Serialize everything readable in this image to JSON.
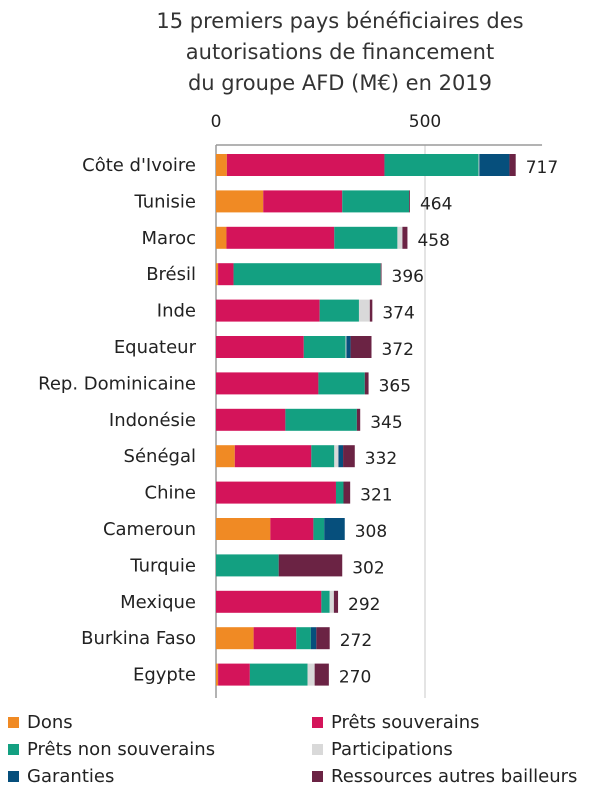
{
  "chart_data": {
    "type": "bar",
    "orientation": "horizontal",
    "stacked": true,
    "title_lines": [
      "15 premiers pays bénéficiaires des",
      "autorisations de financement",
      "du groupe AFD (M€) en 2019"
    ],
    "xlim": [
      0,
      780
    ],
    "x_ticks": [
      0,
      500
    ],
    "x_tick_labels": [
      "0",
      "500"
    ],
    "x_axis_position": "top",
    "grid": "vertical gridlines at ticks",
    "legend_position": "bottom",
    "categories": [
      "Côte d'Ivoire",
      "Tunisie",
      "Maroc",
      "Brésil",
      "Inde",
      "Equateur",
      "Rep. Dominicaine",
      "Indonésie",
      "Sénégal",
      "Chine",
      "Cameroun",
      "Turquie",
      "Mexique",
      "Burkina Faso",
      "Egypte"
    ],
    "totals": [
      717,
      464,
      458,
      396,
      374,
      372,
      365,
      345,
      332,
      321,
      308,
      302,
      292,
      272,
      270
    ],
    "series": [
      {
        "name": "Dons",
        "color": "#f08a24",
        "values": [
          26,
          113,
          25,
          5,
          0,
          0,
          0,
          0,
          45,
          0,
          130,
          0,
          0,
          90,
          5
        ]
      },
      {
        "name": "Prêts souverains",
        "color": "#d4145a",
        "values": [
          377,
          189,
          258,
          37,
          248,
          210,
          245,
          166,
          183,
          287,
          103,
          0,
          252,
          102,
          76
        ]
      },
      {
        "name": "Prêts non souverains",
        "color": "#13a081",
        "values": [
          225,
          160,
          151,
          352,
          94,
          100,
          111,
          171,
          55,
          18,
          26,
          150,
          20,
          35,
          138
        ]
      },
      {
        "name": "Participations",
        "color": "#d9d9d9",
        "values": [
          2,
          0,
          12,
          0,
          26,
          2,
          0,
          0,
          10,
          0,
          0,
          0,
          10,
          0,
          17
        ]
      },
      {
        "name": "Garanties",
        "color": "#064f7c",
        "values": [
          72,
          0,
          0,
          0,
          0,
          10,
          0,
          0,
          11,
          0,
          49,
          0,
          0,
          13,
          0
        ]
      },
      {
        "name": "Ressources autres bailleurs",
        "color": "#6b2344",
        "values": [
          15,
          2,
          12,
          2,
          6,
          50,
          9,
          8,
          28,
          16,
          0,
          152,
          10,
          32,
          34
        ]
      }
    ]
  }
}
